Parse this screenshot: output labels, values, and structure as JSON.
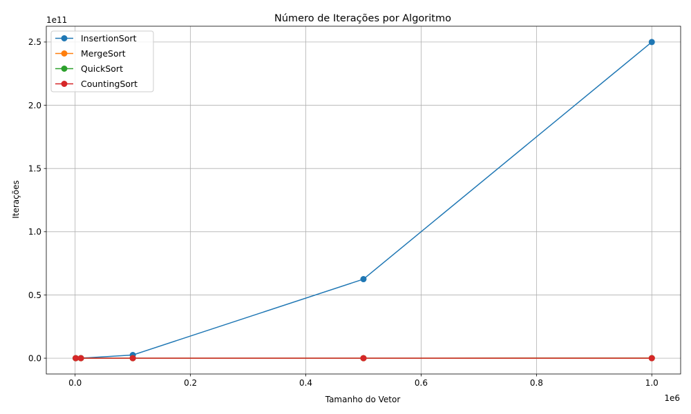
{
  "chart_data": {
    "type": "line",
    "title": "Número de Iterações por Algoritmo",
    "xlabel": "Tamanho do Vetor",
    "ylabel": "Iterações",
    "x_offset_text": "1e6",
    "y_offset_text": "1e11",
    "x_scale": 1000000,
    "y_scale": 100000000000,
    "xlim": [
      -50000,
      1050000
    ],
    "ylim": [
      -12500000000,
      262500000000
    ],
    "x_ticks": [
      0,
      200000,
      400000,
      600000,
      800000,
      1000000
    ],
    "x_tick_labels": [
      "0.0",
      "0.2",
      "0.4",
      "0.6",
      "0.8",
      "1.0"
    ],
    "y_ticks": [
      0,
      50000000000,
      100000000000,
      150000000000,
      200000000000,
      250000000000
    ],
    "y_tick_labels": [
      "0.0",
      "0.5",
      "1.0",
      "1.5",
      "2.0",
      "2.5"
    ],
    "grid": true,
    "legend_position": "top-left",
    "x": [
      1000,
      10000,
      100000,
      500000,
      1000000
    ],
    "series": [
      {
        "name": "InsertionSort",
        "color": "#1f77b4",
        "values": [
          250000,
          25000000,
          2500000000,
          62500000000,
          250000000000
        ]
      },
      {
        "name": "MergeSort",
        "color": "#ff7f0e",
        "values": [
          10000,
          130000,
          1700000,
          9500000,
          20000000
        ]
      },
      {
        "name": "QuickSort",
        "color": "#2ca02c",
        "values": [
          12000,
          160000,
          2000000,
          11000000,
          24000000
        ]
      },
      {
        "name": "CountingSort",
        "color": "#d62728",
        "values": [
          3000,
          30000,
          300000,
          1500000,
          3000000
        ]
      }
    ]
  }
}
